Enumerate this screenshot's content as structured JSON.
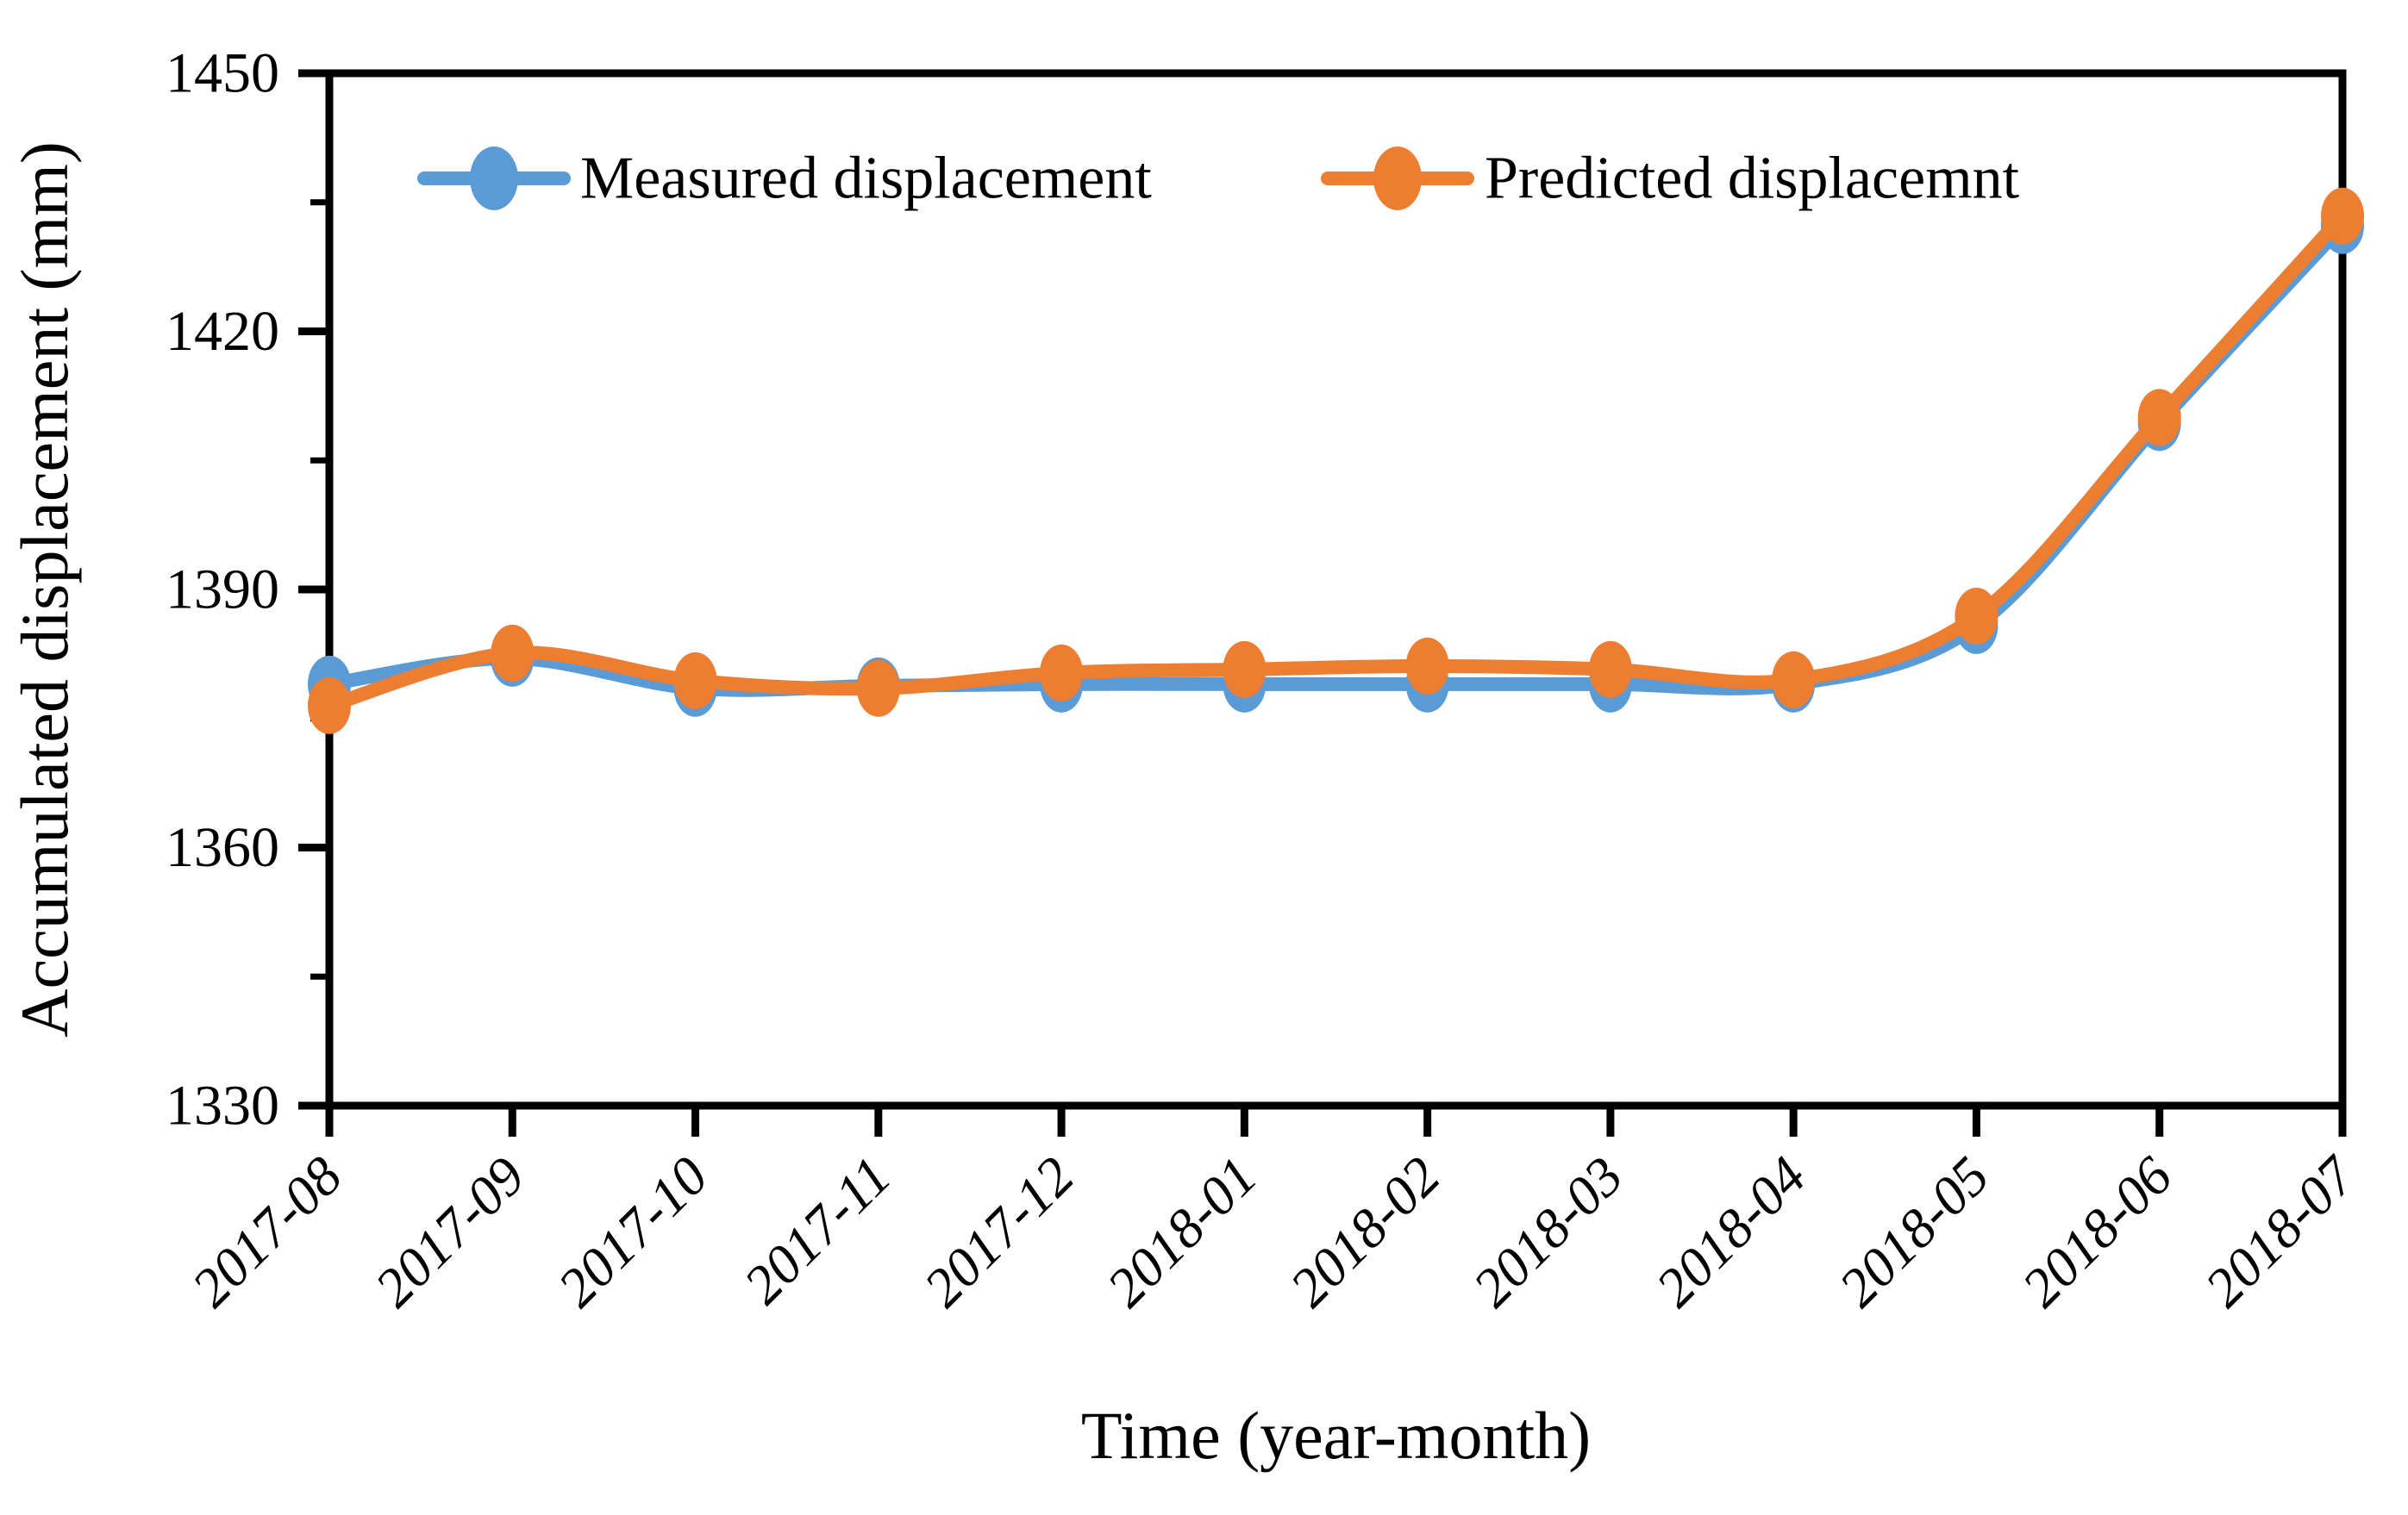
{
  "chart_data": {
    "type": "line",
    "title": "",
    "xlabel": "Time (year-month)",
    "ylabel": "Accumulated displacement (mm)",
    "categories": [
      "2017-08",
      "2017-09",
      "2017-10",
      "2017-11",
      "2017-12",
      "2018-01",
      "2018-02",
      "2018-03",
      "2018-04",
      "2018-05",
      "2018-06",
      "2018-07"
    ],
    "series": [
      {
        "name": "Measured displacement",
        "color": "#5B9BD5",
        "values": [
          1379.0,
          1382.0,
          1378.5,
          1378.8,
          1379.0,
          1379.0,
          1379.0,
          1379.0,
          1379.0,
          1385.8,
          1409.4,
          1432.3
        ]
      },
      {
        "name": "Predicted displacemnt",
        "color": "#ED7D31",
        "values": [
          1376.5,
          1382.6,
          1379.4,
          1378.5,
          1380.3,
          1380.7,
          1381.1,
          1380.7,
          1379.5,
          1386.9,
          1410.0,
          1433.4
        ]
      }
    ],
    "ylim": [
      1330,
      1450
    ],
    "y_major_ticks": [
      1330,
      1360,
      1390,
      1420,
      1450
    ],
    "y_minor_ticks": [
      1345,
      1375,
      1405,
      1435
    ],
    "grid": false,
    "legend_position": "top-inside",
    "axis_color": "#000000",
    "background": "#FFFFFF",
    "marker": "ellipse",
    "line_smoothing": "smooth"
  }
}
